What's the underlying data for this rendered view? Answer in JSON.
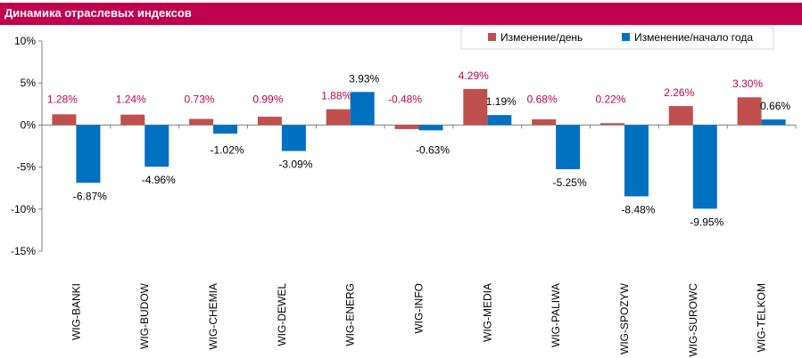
{
  "title": "Динамика отраслевых индексов",
  "colors": {
    "title_bg": "#c0004f",
    "series_day": "#c0504d",
    "series_year": "#0070c0",
    "label_day": "#c0004f",
    "label_year": "#000000"
  },
  "chart_data": {
    "type": "bar",
    "title": "Динамика отраслевых индексов",
    "categories": [
      "WIG-BANKI",
      "WIG-BUDOW",
      "WIG-CHEMIA",
      "WIG-DEWEL",
      "WIG-ENERG",
      "WIG-INFO",
      "WIG-MEDIA",
      "WIG-PALIWA",
      "WIG-SPOZYW",
      "WIG-SUROWC",
      "WIG-TELKOM"
    ],
    "series": [
      {
        "name": "Изменение/день",
        "values": [
          1.28,
          1.24,
          0.73,
          0.99,
          1.88,
          -0.48,
          4.29,
          0.68,
          0.22,
          2.26,
          3.3
        ],
        "labels": [
          "1.28%",
          "1.24%",
          "0.73%",
          "0.99%",
          "1.88%",
          "-0.48%",
          "4.29%",
          "0.68%",
          "0.22%",
          "2.26%",
          "3.30%"
        ]
      },
      {
        "name": "Изменение/начало года",
        "values": [
          -6.87,
          -4.96,
          -1.02,
          -3.09,
          3.93,
          -0.63,
          1.19,
          -5.25,
          -8.48,
          -9.95,
          0.66
        ],
        "labels": [
          "-6.87%",
          "-4.96%",
          "-1.02%",
          "-3.09%",
          "3.93%",
          "-0.63%",
          "1.19%",
          "-5.25%",
          "-8.48%",
          "-9.95%",
          "0.66%"
        ]
      }
    ],
    "ylim": [
      -15,
      10
    ],
    "yticks": [
      10,
      5,
      0,
      -5,
      -10,
      -15
    ],
    "ytick_labels": [
      "10%",
      "5%",
      "0%",
      "-5%",
      "-10%",
      "-15%"
    ],
    "grid": false,
    "legend": "top-right"
  }
}
